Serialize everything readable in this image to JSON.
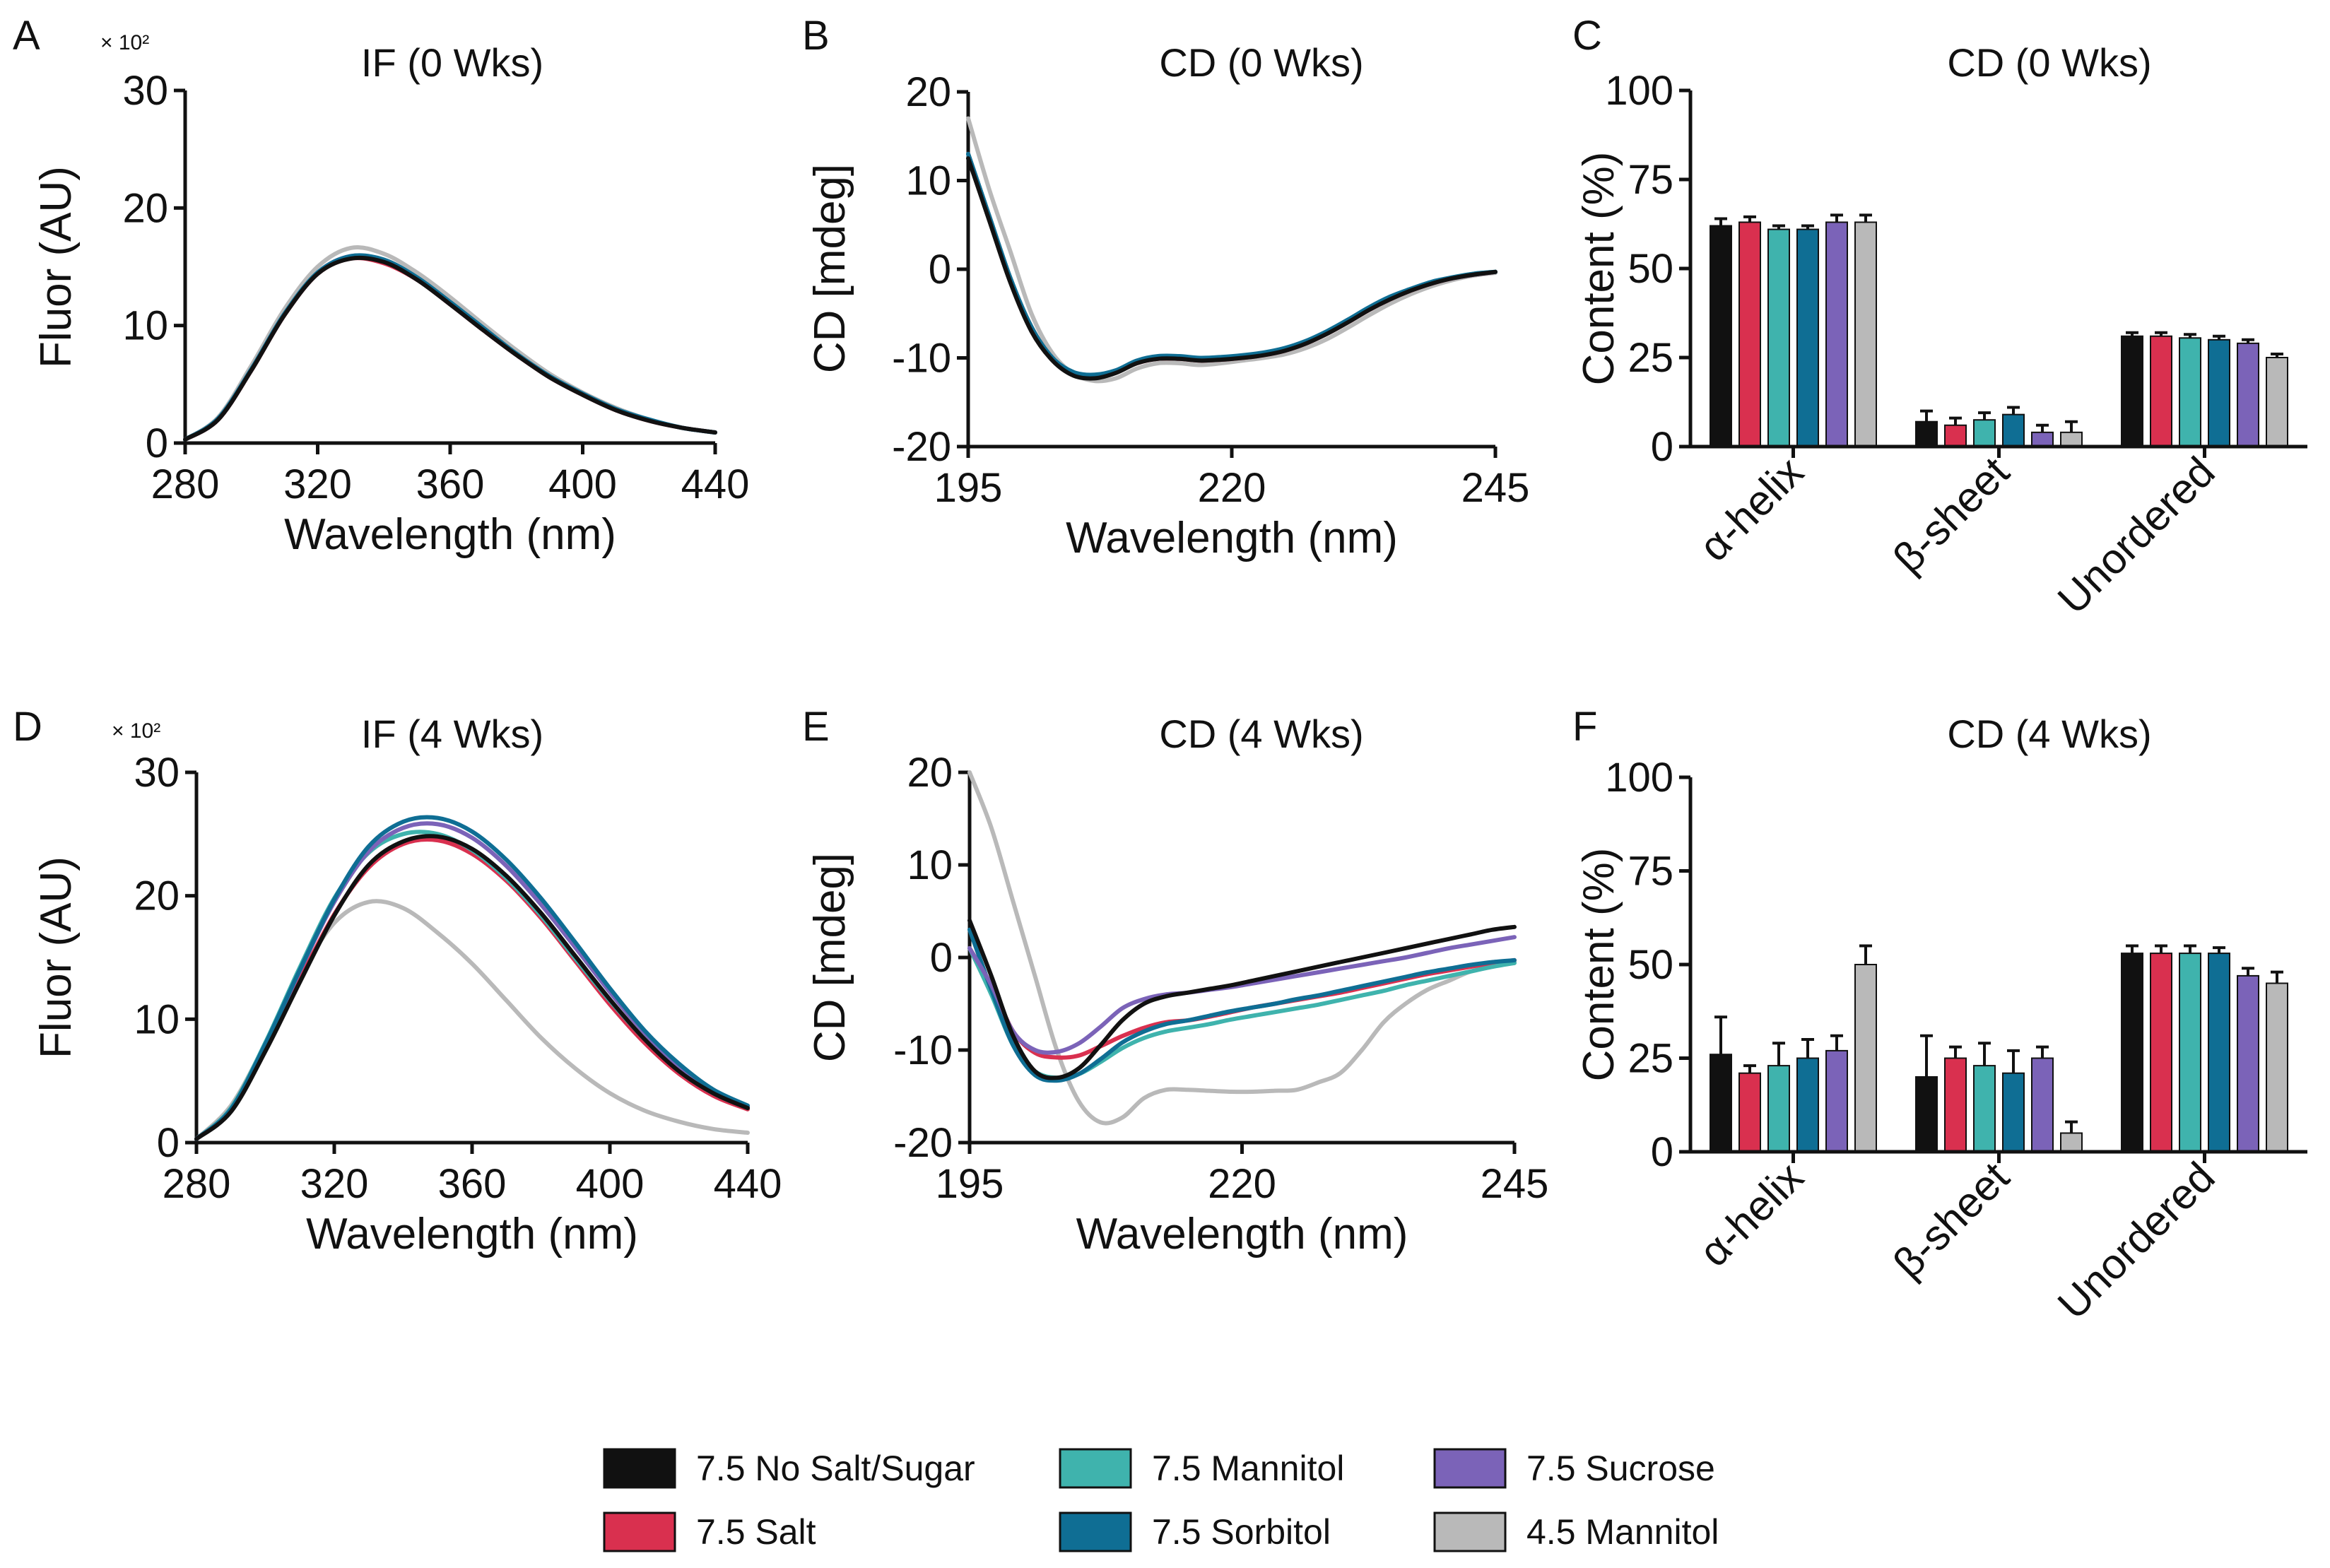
{
  "colors": {
    "no_salt_sugar": "#111111",
    "salt": "#d9304f",
    "mannitol": "#3fb3ad",
    "sorbitol": "#0f6e94",
    "sucrose": "#7b63b8",
    "mannitol_45": "#b9b9b9"
  },
  "legend": [
    {
      "key": "no_salt_sugar",
      "label": "7.5 No Salt/Sugar"
    },
    {
      "key": "mannitol",
      "label": "7.5 Mannitol"
    },
    {
      "key": "sucrose",
      "label": "7.5 Sucrose"
    },
    {
      "key": "salt",
      "label": "7.5 Salt"
    },
    {
      "key": "sorbitol",
      "label": "7.5 Sorbitol"
    },
    {
      "key": "mannitol_45",
      "label": "4.5 Mannitol"
    }
  ],
  "chart_data": [
    {
      "panel": "A",
      "type": "line",
      "title": "IF (0 Wks)",
      "xlabel": "Wavelength (nm)",
      "ylabel": "Fluor (AU)",
      "multiplier": "× 10²",
      "xlim": [
        280,
        440
      ],
      "ylim": [
        0,
        30
      ],
      "xticks": [
        "280",
        "320",
        "360",
        "400",
        "440"
      ],
      "yticks": [
        "0",
        "10",
        "20",
        "30"
      ],
      "x": [
        280,
        290,
        300,
        310,
        320,
        330,
        340,
        350,
        360,
        370,
        380,
        390,
        400,
        410,
        420,
        430,
        440
      ],
      "series": [
        {
          "key": "mannitol_45",
          "values": [
            0.3,
            2.2,
            6.6,
            11.4,
            15.0,
            16.6,
            16.1,
            14.5,
            12.4,
            10.1,
            7.9,
            5.9,
            4.3,
            3.0,
            2.0,
            1.3,
            0.9
          ]
        },
        {
          "key": "sucrose",
          "values": [
            0.3,
            2.1,
            6.3,
            11.0,
            14.5,
            15.9,
            15.5,
            14.0,
            11.9,
            9.7,
            7.6,
            5.7,
            4.2,
            2.9,
            2.0,
            1.3,
            0.9
          ]
        },
        {
          "key": "salt",
          "values": [
            0.3,
            2.0,
            6.2,
            10.9,
            14.4,
            15.7,
            15.3,
            13.9,
            11.8,
            9.6,
            7.5,
            5.6,
            4.1,
            2.8,
            1.9,
            1.3,
            0.9
          ]
        },
        {
          "key": "mannitol",
          "values": [
            0.3,
            2.1,
            6.3,
            11.0,
            14.5,
            15.8,
            15.5,
            14.0,
            11.9,
            9.7,
            7.6,
            5.7,
            4.2,
            2.9,
            2.0,
            1.3,
            0.9
          ]
        },
        {
          "key": "sorbitol",
          "values": [
            0.3,
            2.1,
            6.3,
            11.0,
            14.5,
            15.9,
            15.6,
            14.1,
            12.0,
            9.8,
            7.6,
            5.7,
            4.2,
            2.9,
            2.0,
            1.3,
            0.9
          ]
        },
        {
          "key": "no_salt_sugar",
          "values": [
            0.3,
            2.0,
            6.2,
            10.9,
            14.4,
            15.7,
            15.4,
            13.9,
            11.8,
            9.6,
            7.5,
            5.6,
            4.1,
            2.8,
            1.9,
            1.3,
            0.9
          ]
        }
      ]
    },
    {
      "panel": "B",
      "type": "line",
      "title": "CD (0 Wks)",
      "xlabel": "Wavelength (nm)",
      "ylabel": "CD [mdeg]",
      "xlim": [
        195,
        245
      ],
      "ylim": [
        -20,
        20
      ],
      "xticks": [
        "195",
        "220",
        "245"
      ],
      "yticks": [
        "-20",
        "-10",
        "0",
        "10",
        "20"
      ],
      "x": [
        195,
        197,
        199,
        201,
        203,
        205,
        207,
        209,
        211,
        213,
        215,
        217,
        219,
        221,
        223,
        225,
        227,
        229,
        231,
        233,
        235,
        237,
        239,
        241,
        243,
        245
      ],
      "series": [
        {
          "key": "mannitol_45",
          "values": [
            17,
            9,
            2,
            -5,
            -9.5,
            -11.8,
            -12.6,
            -12.3,
            -11.2,
            -10.6,
            -10.6,
            -10.8,
            -10.6,
            -10.3,
            -10.0,
            -9.6,
            -8.9,
            -7.9,
            -6.6,
            -5.2,
            -3.9,
            -2.8,
            -1.9,
            -1.2,
            -0.7,
            -0.4
          ]
        },
        {
          "key": "salt",
          "values": [
            13,
            6,
            -1,
            -6.5,
            -10,
            -11.8,
            -12.2,
            -11.6,
            -10.6,
            -10.1,
            -10.1,
            -10.3,
            -10.2,
            -10.0,
            -9.7,
            -9.2,
            -8.4,
            -7.3,
            -6.0,
            -4.6,
            -3.4,
            -2.4,
            -1.6,
            -1.0,
            -0.6,
            -0.3
          ]
        },
        {
          "key": "sucrose",
          "values": [
            13,
            6,
            -1,
            -6.5,
            -10,
            -11.7,
            -12.0,
            -11.5,
            -10.5,
            -10.0,
            -10.0,
            -10.2,
            -10.1,
            -9.9,
            -9.6,
            -9.1,
            -8.3,
            -7.2,
            -5.9,
            -4.5,
            -3.3,
            -2.3,
            -1.5,
            -1.0,
            -0.6,
            -0.3
          ]
        },
        {
          "key": "mannitol",
          "values": [
            13,
            6,
            -1,
            -6.5,
            -10,
            -11.7,
            -12.0,
            -11.5,
            -10.4,
            -9.9,
            -9.9,
            -10.1,
            -10.0,
            -9.8,
            -9.5,
            -9.0,
            -8.2,
            -7.1,
            -5.8,
            -4.4,
            -3.2,
            -2.3,
            -1.5,
            -0.9,
            -0.5,
            -0.3
          ]
        },
        {
          "key": "sorbitol",
          "values": [
            13,
            6,
            -1,
            -6.5,
            -10,
            -11.6,
            -11.9,
            -11.4,
            -10.3,
            -9.8,
            -9.8,
            -10.0,
            -9.9,
            -9.7,
            -9.4,
            -8.9,
            -8.1,
            -7.0,
            -5.7,
            -4.3,
            -3.1,
            -2.2,
            -1.4,
            -0.9,
            -0.5,
            -0.3
          ]
        },
        {
          "key": "no_salt_sugar",
          "values": [
            12.5,
            5.5,
            -1.5,
            -7,
            -10.3,
            -12.0,
            -12.3,
            -11.7,
            -10.6,
            -10.1,
            -10.1,
            -10.3,
            -10.2,
            -10.0,
            -9.7,
            -9.2,
            -8.4,
            -7.3,
            -6.0,
            -4.6,
            -3.4,
            -2.4,
            -1.6,
            -1.0,
            -0.6,
            -0.3
          ]
        }
      ]
    },
    {
      "panel": "C",
      "type": "bar",
      "title": "CD (0 Wks)",
      "ylabel": "Content (%)",
      "ylim": [
        0,
        100
      ],
      "yticks": [
        "0",
        "25",
        "50",
        "75",
        "100"
      ],
      "categories": [
        "α-helix",
        "β-sheet",
        "Unordered"
      ],
      "series": [
        {
          "key": "no_salt_sugar",
          "values": [
            62,
            7,
            31
          ],
          "errors": [
            2,
            3,
            1
          ]
        },
        {
          "key": "salt",
          "values": [
            63,
            6,
            31
          ],
          "errors": [
            1.5,
            2,
            1
          ]
        },
        {
          "key": "mannitol",
          "values": [
            61,
            7.5,
            30.5
          ],
          "errors": [
            1,
            2,
            1
          ]
        },
        {
          "key": "sorbitol",
          "values": [
            61,
            9,
            30
          ],
          "errors": [
            1,
            2,
            1
          ]
        },
        {
          "key": "sucrose",
          "values": [
            63,
            4,
            29
          ],
          "errors": [
            2,
            2,
            1
          ]
        },
        {
          "key": "mannitol_45",
          "values": [
            63,
            4,
            25
          ],
          "errors": [
            2,
            3,
            1
          ]
        }
      ]
    },
    {
      "panel": "D",
      "type": "line",
      "title": "IF (4 Wks)",
      "xlabel": "Wavelength (nm)",
      "ylabel": "Fluor (AU)",
      "multiplier": "× 10²",
      "xlim": [
        280,
        440
      ],
      "ylim": [
        0,
        30
      ],
      "xticks": [
        "280",
        "320",
        "360",
        "400",
        "440"
      ],
      "yticks": [
        "0",
        "10",
        "20",
        "30"
      ],
      "x": [
        280,
        290,
        300,
        310,
        320,
        330,
        340,
        350,
        360,
        370,
        380,
        390,
        400,
        410,
        420,
        430,
        440
      ],
      "series": [
        {
          "key": "mannitol_45",
          "values": [
            0.3,
            3.0,
            8.0,
            13.5,
            17.8,
            19.5,
            19.0,
            17.0,
            14.5,
            11.5,
            8.5,
            6.0,
            4.0,
            2.6,
            1.7,
            1.1,
            0.8
          ]
        },
        {
          "key": "salt",
          "values": [
            0.3,
            2.6,
            7.6,
            13.2,
            18.5,
            22.3,
            24.2,
            24.5,
            23.4,
            21.2,
            18.2,
            14.7,
            11.2,
            8.1,
            5.6,
            3.8,
            2.7
          ]
        },
        {
          "key": "mannitol",
          "values": [
            0.3,
            2.8,
            8.1,
            14.2,
            19.8,
            23.5,
            25.0,
            25.0,
            23.7,
            21.4,
            18.4,
            14.9,
            11.5,
            8.4,
            5.8,
            4.0,
            2.8
          ]
        },
        {
          "key": "sucrose",
          "values": [
            0.3,
            2.7,
            7.9,
            13.9,
            19.5,
            23.6,
            25.5,
            25.8,
            24.7,
            22.4,
            19.3,
            15.8,
            12.2,
            8.9,
            6.2,
            4.2,
            2.9
          ]
        },
        {
          "key": "sorbitol",
          "values": [
            0.3,
            2.7,
            8.0,
            14.0,
            19.7,
            24.0,
            26.0,
            26.3,
            25.2,
            22.9,
            19.8,
            16.2,
            12.5,
            9.1,
            6.4,
            4.3,
            3.0
          ]
        },
        {
          "key": "no_salt_sugar",
          "values": [
            0.3,
            2.5,
            7.4,
            13.0,
            18.4,
            22.5,
            24.4,
            24.8,
            23.8,
            21.6,
            18.6,
            15.1,
            11.6,
            8.4,
            5.8,
            4.0,
            2.8
          ]
        }
      ]
    },
    {
      "panel": "E",
      "type": "line",
      "title": "CD (4 Wks)",
      "xlabel": "Wavelength (nm)",
      "ylabel": "CD [mdeg]",
      "xlim": [
        195,
        245
      ],
      "ylim": [
        -20,
        20
      ],
      "xticks": [
        "195",
        "220",
        "245"
      ],
      "yticks": [
        "-20",
        "-10",
        "0",
        "10",
        "20"
      ],
      "x": [
        195,
        197,
        199,
        201,
        203,
        205,
        207,
        209,
        211,
        213,
        215,
        217,
        219,
        221,
        223,
        225,
        227,
        229,
        231,
        233,
        235,
        237,
        239,
        241,
        243,
        245
      ],
      "series": [
        {
          "key": "mannitol_45",
          "values": [
            20,
            14,
            6,
            -2,
            -10,
            -15.5,
            -17.8,
            -17.3,
            -15.2,
            -14.3,
            -14.3,
            -14.4,
            -14.5,
            -14.5,
            -14.4,
            -14.3,
            -13.5,
            -12.5,
            -10.0,
            -7.0,
            -5.0,
            -3.5,
            -2.5,
            -1.5,
            -1.0,
            -0.5
          ]
        },
        {
          "key": "salt",
          "values": [
            1,
            -3,
            -8,
            -10.3,
            -10.8,
            -10.6,
            -9.6,
            -8.5,
            -7.6,
            -7.0,
            -6.8,
            -6.4,
            -5.9,
            -5.4,
            -5.0,
            -4.6,
            -4.2,
            -3.8,
            -3.3,
            -2.8,
            -2.3,
            -1.8,
            -1.4,
            -1.0,
            -0.6,
            -0.3
          ]
        },
        {
          "key": "mannitol",
          "values": [
            1,
            -4,
            -9.5,
            -12.3,
            -13.0,
            -12.6,
            -11.3,
            -9.8,
            -8.7,
            -8.0,
            -7.6,
            -7.2,
            -6.7,
            -6.3,
            -5.9,
            -5.5,
            -5.1,
            -4.6,
            -4.1,
            -3.6,
            -3.0,
            -2.5,
            -2.0,
            -1.5,
            -1.0,
            -0.6
          ]
        },
        {
          "key": "sorbitol",
          "values": [
            3,
            -3.5,
            -9.5,
            -12.7,
            -13.3,
            -12.6,
            -11.0,
            -9.2,
            -8.0,
            -7.2,
            -6.8,
            -6.3,
            -5.8,
            -5.4,
            -5.0,
            -4.5,
            -4.1,
            -3.6,
            -3.1,
            -2.6,
            -2.1,
            -1.6,
            -1.2,
            -0.8,
            -0.5,
            -0.3
          ]
        },
        {
          "key": "sucrose",
          "values": [
            1,
            -3,
            -8,
            -10.0,
            -10.2,
            -9.3,
            -7.5,
            -5.5,
            -4.5,
            -4.0,
            -3.8,
            -3.5,
            -3.2,
            -2.8,
            -2.4,
            -2.0,
            -1.6,
            -1.2,
            -0.8,
            -0.4,
            0.0,
            0.5,
            1.0,
            1.4,
            1.8,
            2.2
          ]
        },
        {
          "key": "no_salt_sugar",
          "values": [
            4,
            -2,
            -8.5,
            -12.3,
            -13.0,
            -12.0,
            -9.5,
            -6.8,
            -5.0,
            -4.2,
            -3.8,
            -3.4,
            -3.0,
            -2.5,
            -2.0,
            -1.5,
            -1.0,
            -0.5,
            0.0,
            0.5,
            1.0,
            1.5,
            2.0,
            2.5,
            3.0,
            3.3
          ]
        }
      ]
    },
    {
      "panel": "F",
      "type": "bar",
      "title": "CD (4 Wks)",
      "ylabel": "Content (%)",
      "ylim": [
        0,
        100
      ],
      "yticks": [
        "0",
        "25",
        "50",
        "75",
        "100"
      ],
      "categories": [
        "α-helix",
        "β-sheet",
        "Unordered"
      ],
      "series": [
        {
          "key": "no_salt_sugar",
          "values": [
            26,
            20,
            53
          ],
          "errors": [
            10,
            11,
            2
          ]
        },
        {
          "key": "salt",
          "values": [
            21,
            25,
            53
          ],
          "errors": [
            2,
            3,
            2
          ]
        },
        {
          "key": "mannitol",
          "values": [
            23,
            23,
            53
          ],
          "errors": [
            6,
            6,
            2
          ]
        },
        {
          "key": "sorbitol",
          "values": [
            25,
            21,
            53
          ],
          "errors": [
            5,
            6,
            1.5
          ]
        },
        {
          "key": "sucrose",
          "values": [
            27,
            25,
            47
          ],
          "errors": [
            4,
            3,
            2
          ]
        },
        {
          "key": "mannitol_45",
          "values": [
            50,
            5,
            45
          ],
          "errors": [
            5,
            3,
            3
          ]
        }
      ]
    }
  ]
}
